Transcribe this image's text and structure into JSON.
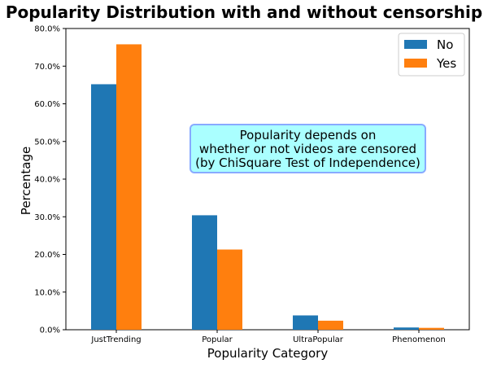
{
  "chart_data": {
    "type": "bar",
    "title": "Popularity Distribution with and without censorship",
    "xlabel": "Popularity Category",
    "ylabel": "Percentage",
    "categories": [
      "JustTrending",
      "Popular",
      "UltraPopular",
      "Phenomenon"
    ],
    "series": [
      {
        "name": "No",
        "values": [
          65.2,
          30.4,
          3.8,
          0.6
        ],
        "color": "#1f77b4"
      },
      {
        "name": "Yes",
        "values": [
          75.8,
          21.3,
          2.4,
          0.5
        ],
        "color": "#ff7f0e"
      }
    ],
    "ylim": [
      0,
      80
    ],
    "yticks": [
      0,
      10,
      20,
      30,
      40,
      50,
      60,
      70,
      80
    ],
    "ytick_labels": [
      "0.0%",
      "10.0%",
      "20.0%",
      "30.0%",
      "40.0%",
      "50.0%",
      "60.0%",
      "70.0%",
      "80.0%"
    ],
    "grid": false,
    "legend": {
      "position": "top-right"
    },
    "annotation": {
      "lines": [
        "Popularity depends on",
        "whether or not videos are censored",
        "(by ChiSquare Test of Independence)"
      ],
      "background": "#aaffff",
      "border": "#88aaff"
    }
  }
}
